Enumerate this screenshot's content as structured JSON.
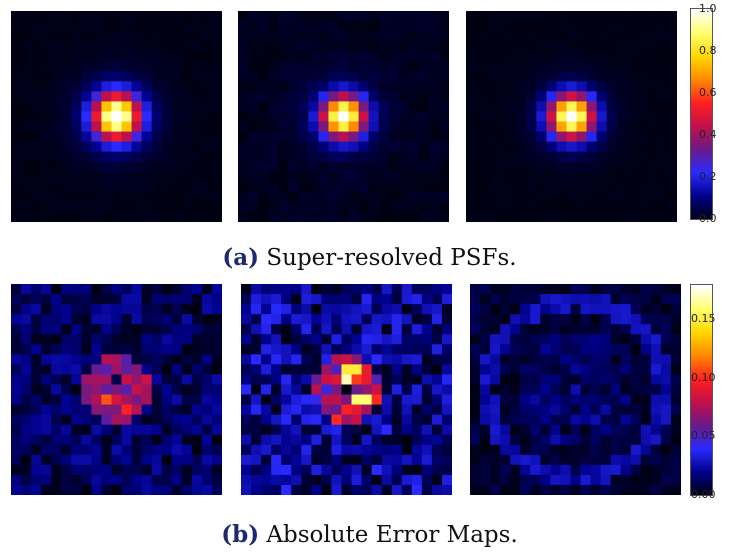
{
  "chart_data": [
    {
      "type": "heatmap",
      "group": "a",
      "caption_tag": "(a)",
      "caption_text": "Super-resolved PSFs.",
      "colormap": "gnuplot-like",
      "colormap_stops": [
        "#000010",
        "#00008a",
        "#2a2aff",
        "#6a1a8a",
        "#c2104a",
        "#ff2020",
        "#ff8a00",
        "#ffd800",
        "#ffff70",
        "#ffffff"
      ],
      "clim": [
        0.0,
        1.0
      ],
      "colorbar_ticks": [
        "0.0",
        "0.2",
        "0.4",
        "0.6",
        "0.8",
        "1.0"
      ],
      "grid_size": 21,
      "panels": [
        {
          "center": [
            10,
            10
          ],
          "peak": 1.0,
          "sigma": 1.55,
          "halo": 0.1,
          "noise": 0.01
        },
        {
          "center": [
            10,
            10
          ],
          "peak": 0.97,
          "sigma": 1.45,
          "halo": 0.07,
          "noise": 0.025
        },
        {
          "center": [
            10,
            10
          ],
          "peak": 1.0,
          "sigma": 1.5,
          "halo": 0.06,
          "noise": 0.008
        }
      ]
    },
    {
      "type": "heatmap",
      "group": "b",
      "caption_tag": "(b)",
      "caption_text": "Absolute Error Maps.",
      "colormap": "gnuplot-like",
      "colormap_stops": [
        "#000010",
        "#00008a",
        "#2a2aff",
        "#6a1a8a",
        "#c2104a",
        "#ff2020",
        "#ff8a00",
        "#ffd800",
        "#ffff70",
        "#ffffff"
      ],
      "clim": [
        0.0,
        0.18
      ],
      "colorbar_ticks": [
        "0.00",
        "0.05",
        "0.10",
        "0.15"
      ],
      "grid_size": 21,
      "panels": [
        {
          "peak": 0.1,
          "noise": 0.025,
          "pattern": "ring"
        },
        {
          "peak": 0.17,
          "noise": 0.04,
          "pattern": "split"
        },
        {
          "peak": 0.04,
          "noise": 0.012,
          "pattern": "rings"
        }
      ]
    }
  ]
}
